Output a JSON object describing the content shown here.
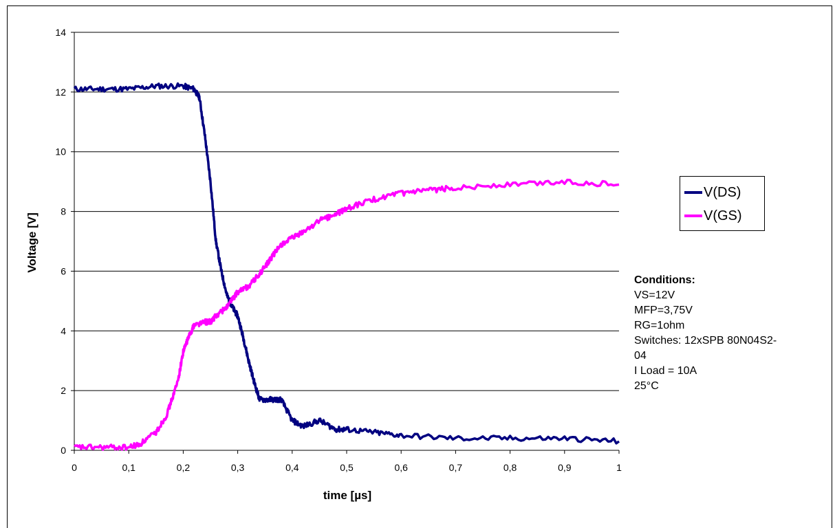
{
  "chart_data": {
    "type": "line",
    "xlabel": "time [µs]",
    "ylabel": "Voltage [V]",
    "xlim": [
      0,
      1
    ],
    "ylim": [
      0,
      14
    ],
    "x_ticks": [
      "0",
      "0,1",
      "0,2",
      "0,3",
      "0,4",
      "0,5",
      "0,6",
      "0,7",
      "0,8",
      "0,9",
      "1"
    ],
    "y_ticks": [
      "0",
      "2",
      "4",
      "6",
      "8",
      "10",
      "12",
      "14"
    ],
    "grid": "horizontal",
    "legend_position": "right",
    "series": [
      {
        "name": "V(DS)",
        "color": "#000080",
        "x": [
          0,
          0.05,
          0.1,
          0.15,
          0.2,
          0.22,
          0.23,
          0.24,
          0.25,
          0.26,
          0.27,
          0.28,
          0.29,
          0.3,
          0.31,
          0.32,
          0.33,
          0.34,
          0.36,
          0.38,
          0.4,
          0.42,
          0.45,
          0.48,
          0.5,
          0.55,
          0.6,
          0.7,
          0.8,
          0.9,
          1.0
        ],
        "y": [
          12.1,
          12.1,
          12.1,
          12.2,
          12.2,
          12.1,
          11.8,
          10.5,
          9.0,
          7.0,
          6.0,
          5.2,
          4.8,
          4.5,
          3.8,
          3.0,
          2.3,
          1.7,
          1.7,
          1.7,
          1.0,
          0.8,
          1.0,
          0.7,
          0.7,
          0.6,
          0.5,
          0.4,
          0.4,
          0.4,
          0.3
        ]
      },
      {
        "name": "V(GS)",
        "color": "#ff00ff",
        "x": [
          0,
          0.05,
          0.1,
          0.12,
          0.15,
          0.17,
          0.19,
          0.2,
          0.21,
          0.22,
          0.24,
          0.25,
          0.26,
          0.28,
          0.3,
          0.32,
          0.34,
          0.36,
          0.38,
          0.4,
          0.42,
          0.45,
          0.48,
          0.5,
          0.55,
          0.6,
          0.65,
          0.7,
          0.8,
          0.9,
          1.0
        ],
        "y": [
          0.1,
          0.1,
          0.1,
          0.2,
          0.6,
          1.2,
          2.3,
          3.3,
          3.8,
          4.2,
          4.3,
          4.3,
          4.5,
          4.8,
          5.3,
          5.5,
          5.9,
          6.4,
          6.9,
          7.1,
          7.3,
          7.7,
          7.9,
          8.1,
          8.4,
          8.6,
          8.7,
          8.8,
          8.9,
          9.0,
          8.9
        ]
      }
    ]
  },
  "conditions": {
    "title": "Conditions:",
    "lines": [
      "VS=12V",
      "MFP=3,75V",
      "RG=1ohm",
      "Switches: 12xSPB 80N04S2-",
      "04",
      "I Load = 10A",
      "25°C"
    ]
  }
}
